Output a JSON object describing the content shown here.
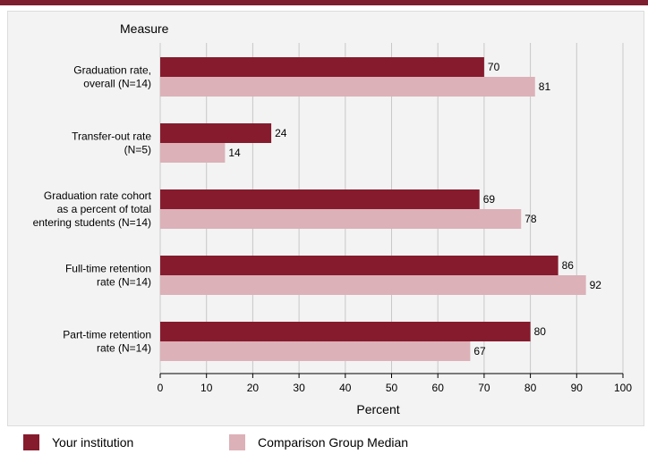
{
  "colors": {
    "your_institution": "#861b2d",
    "comparison_median": "#dcb1b8",
    "top_bar": "#7d1f2e"
  },
  "chart_data": {
    "type": "bar",
    "orientation": "horizontal",
    "category_axis_title": "Measure",
    "xlabel": "Percent",
    "xlim": [
      0,
      100
    ],
    "xticks": [
      0,
      10,
      20,
      30,
      40,
      50,
      60,
      70,
      80,
      90,
      100
    ],
    "categories": [
      [
        "Graduation rate,",
        "overall (N=14)"
      ],
      [
        "Transfer-out rate",
        "(N=5)"
      ],
      [
        "Graduation rate cohort",
        "as a percent of total",
        "entering students (N=14)"
      ],
      [
        "Full-time retention",
        "rate (N=14)"
      ],
      [
        "Part-time retention",
        "rate (N=14)"
      ]
    ],
    "series": [
      {
        "name": "Your institution",
        "values": [
          70,
          24,
          69,
          86,
          80
        ]
      },
      {
        "name": "Comparison Group Median",
        "values": [
          81,
          14,
          78,
          92,
          67
        ]
      }
    ],
    "data_labels": true,
    "grid": "vertical",
    "legend_position": "bottom"
  },
  "legend": {
    "your_institution": "Your institution",
    "comparison_median": "Comparison Group Median"
  }
}
